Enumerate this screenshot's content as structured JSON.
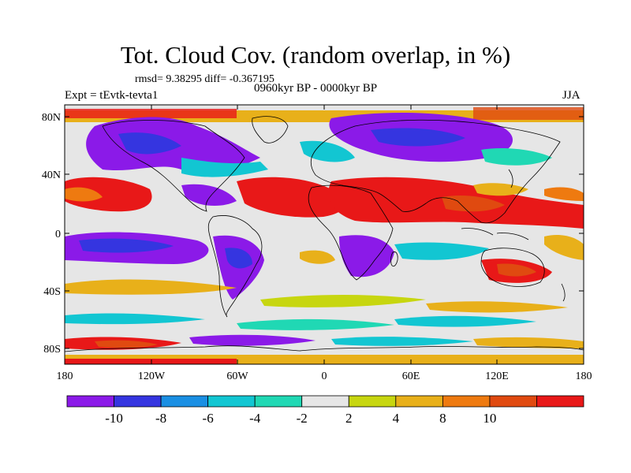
{
  "title": "Tot. Cloud Cov. (random overlap, in %)",
  "stats": "rmsd= 9.38295 diff= -0.367195",
  "period": "0960kyr BP - 0000kyr BP",
  "experiment": "Expt = tEvtk-tevta1",
  "season": "JJA",
  "map": {
    "lat_ticks": [
      "80N",
      "40N",
      "0",
      "40S",
      "80S"
    ],
    "lon_ticks": [
      "180",
      "120W",
      "60W",
      "0",
      "60E",
      "120E",
      "180"
    ]
  },
  "colorbar": {
    "labels": [
      "-10",
      "-8",
      "-6",
      "-4",
      "-2",
      "2",
      "4",
      "8",
      "10"
    ],
    "colors": [
      "#8b1ae8",
      "#3535e0",
      "#1a8fe3",
      "#12c6d2",
      "#20d8b4",
      "#e6e6e6",
      "#c7d610",
      "#e8b01a",
      "#ee7a10",
      "#e04a10",
      "#e81818"
    ]
  }
}
